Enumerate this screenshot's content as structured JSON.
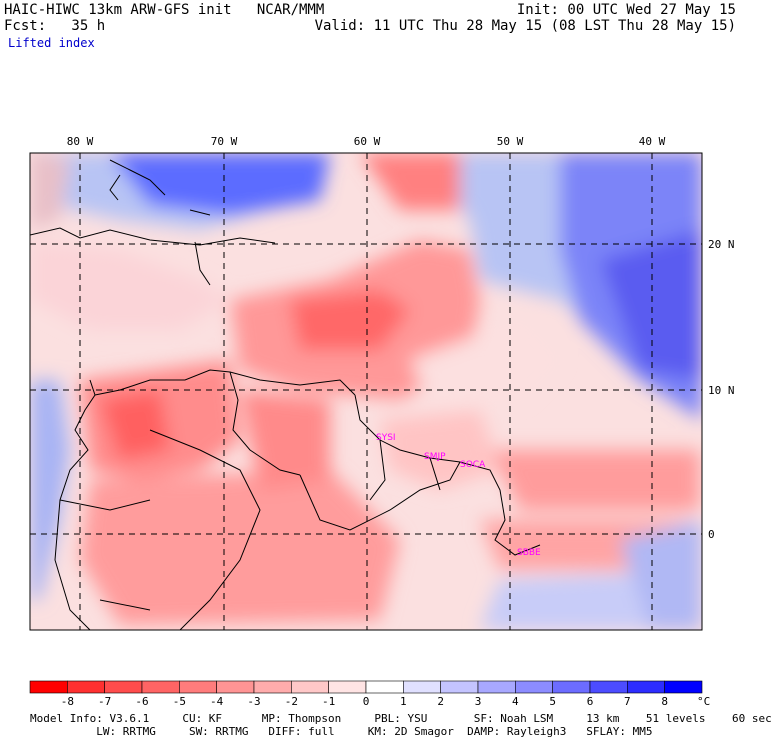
{
  "header": {
    "title": "HAIC-HIWC 13km ARW-GFS init   NCAR/MMM",
    "init": "Init: 00 UTC Wed 27 May 15",
    "fcst": "Fcst:   35 h",
    "valid": "Valid: 11 UTC Thu 28 May 15 (08 LST Thu 28 May 15)",
    "field": "Lifted index"
  },
  "map": {
    "lon_labels": [
      "80 W",
      "70 W",
      "60 W",
      "50 W",
      "40 W"
    ],
    "lat_labels": [
      "20 N",
      "10 N",
      "0"
    ],
    "stations": [
      "SYSI",
      "SMJP",
      "SOCA",
      "SBBE"
    ],
    "station_color": "#ff00ff"
  },
  "colorbar": {
    "labels": [
      "-8",
      "-7",
      "-6",
      "-5",
      "-4",
      "-3",
      "-2",
      "-1",
      "0",
      "1",
      "2",
      "3",
      "4",
      "5",
      "6",
      "7",
      "8"
    ],
    "unit": "°C",
    "colors": [
      "#ff0000",
      "#ff3030",
      "#ff4c4c",
      "#ff6464",
      "#ff7c7c",
      "#ff9494",
      "#ffacac",
      "#ffc8c8",
      "#ffe4e4",
      "#ffffff",
      "#e0e0ff",
      "#c4c4ff",
      "#a8a8ff",
      "#8c8cff",
      "#6c6cff",
      "#4c4cff",
      "#2c2cff",
      "#0000ff"
    ]
  },
  "footer": {
    "line1": "Model Info: V3.6.1     CU: KF      MP: Thompson     PBL: YSU       SF: Noah LSM     13 km    51 levels    60 sec",
    "line2": "          LW: RRTMG     SW: RRTMG   DIFF: full     KM: 2D Smagor  DAMP: Rayleigh3   SFLAY: MM5"
  }
}
